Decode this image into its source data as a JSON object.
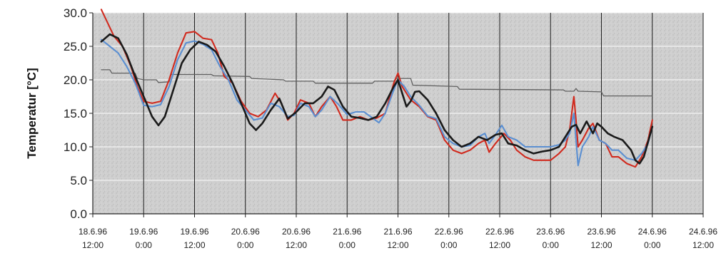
{
  "chart_data": {
    "type": "line",
    "title": "",
    "xlabel": "",
    "ylabel": "Temperatur [°C]",
    "ylim": [
      0,
      30
    ],
    "xlim_hours": [
      0,
      144
    ],
    "grid": true,
    "y_ticks": [
      "0.0",
      "5.0",
      "10.0",
      "15.0",
      "20.0",
      "25.0",
      "30.0"
    ],
    "x_ticks": [
      {
        "date": "18.6.96",
        "time": "12:00"
      },
      {
        "date": "19.6.96",
        "time": "0:00"
      },
      {
        "date": "19.6.96",
        "time": "12:00"
      },
      {
        "date": "20.6.96",
        "time": "0:00"
      },
      {
        "date": "20.6.96",
        "time": "12:00"
      },
      {
        "date": "21.6.96",
        "time": "0:00"
      },
      {
        "date": "21.6.96",
        "time": "12:00"
      },
      {
        "date": "22.6.96",
        "time": "0:00"
      },
      {
        "date": "22.6.96",
        "time": "12:00"
      },
      {
        "date": "23.6.96",
        "time": "0:00"
      },
      {
        "date": "23.6.96",
        "time": "12:00"
      },
      {
        "date": "24.6.96",
        "time": "0:00"
      },
      {
        "date": "24.6.96",
        "time": "12:00"
      }
    ],
    "series": [
      {
        "color": "#d02a1e",
        "points": [
          [
            2,
            30.5
          ],
          [
            5,
            26.5
          ],
          [
            7,
            25
          ],
          [
            9,
            22
          ],
          [
            10.5,
            19
          ],
          [
            12,
            16.8
          ],
          [
            14,
            16.5
          ],
          [
            16,
            16.8
          ],
          [
            18,
            20
          ],
          [
            20,
            24
          ],
          [
            22,
            27
          ],
          [
            24,
            27.2
          ],
          [
            26,
            26.2
          ],
          [
            28,
            26
          ],
          [
            29.5,
            24
          ],
          [
            31,
            20.5
          ],
          [
            33,
            19.5
          ],
          [
            35,
            16.8
          ],
          [
            37,
            15
          ],
          [
            39,
            14.5
          ],
          [
            41,
            15.5
          ],
          [
            43,
            18
          ],
          [
            44.5,
            16.5
          ],
          [
            46,
            14
          ],
          [
            47.5,
            15
          ],
          [
            49,
            17
          ],
          [
            51,
            16.5
          ],
          [
            52.5,
            14.5
          ],
          [
            54,
            16
          ],
          [
            56,
            17.5
          ],
          [
            57.5,
            16
          ],
          [
            59,
            14
          ],
          [
            61,
            14
          ],
          [
            63,
            14.5
          ],
          [
            65,
            14
          ],
          [
            67,
            14.3
          ],
          [
            69,
            15
          ],
          [
            71,
            19.5
          ],
          [
            72,
            21
          ],
          [
            73,
            19
          ],
          [
            75,
            17
          ],
          [
            77,
            16
          ],
          [
            79,
            14.5
          ],
          [
            81,
            14
          ],
          [
            83,
            11
          ],
          [
            85,
            9.5
          ],
          [
            87,
            9
          ],
          [
            89,
            9.5
          ],
          [
            91,
            10.5
          ],
          [
            92.5,
            11
          ],
          [
            93.5,
            9.2
          ],
          [
            95,
            10.5
          ],
          [
            97,
            12
          ],
          [
            98.5,
            11
          ],
          [
            100,
            9.5
          ],
          [
            102,
            8.5
          ],
          [
            104,
            8
          ],
          [
            106,
            8
          ],
          [
            108,
            8
          ],
          [
            110,
            9
          ],
          [
            111.5,
            10
          ],
          [
            112.5,
            12.5
          ],
          [
            113,
            15
          ],
          [
            113.5,
            17.5
          ],
          [
            114,
            14
          ],
          [
            114.5,
            10
          ],
          [
            115.5,
            11
          ],
          [
            117,
            12.8
          ],
          [
            118,
            13.5
          ],
          [
            119.5,
            11
          ],
          [
            121,
            10.5
          ],
          [
            122.5,
            8.5
          ],
          [
            124,
            8.5
          ],
          [
            126,
            7.5
          ],
          [
            128,
            7
          ],
          [
            129.5,
            8.5
          ],
          [
            131,
            11
          ],
          [
            132,
            14
          ]
        ]
      },
      {
        "color": "#5b8fd1",
        "points": [
          [
            2,
            26
          ],
          [
            4,
            25
          ],
          [
            6,
            24
          ],
          [
            8,
            22
          ],
          [
            10,
            19.5
          ],
          [
            12,
            16.2
          ],
          [
            14,
            16
          ],
          [
            16,
            16.3
          ],
          [
            18,
            19
          ],
          [
            20,
            23
          ],
          [
            22,
            25.5
          ],
          [
            24,
            25.8
          ],
          [
            26,
            25.3
          ],
          [
            28,
            24.5
          ],
          [
            30,
            22
          ],
          [
            32,
            20
          ],
          [
            34,
            17
          ],
          [
            36,
            15.5
          ],
          [
            38,
            14
          ],
          [
            40,
            14.3
          ],
          [
            42,
            16.5
          ],
          [
            44,
            16
          ],
          [
            46,
            14.5
          ],
          [
            47.5,
            14.7
          ],
          [
            49,
            16.5
          ],
          [
            51,
            16
          ],
          [
            52.5,
            14.5
          ],
          [
            54,
            15.5
          ],
          [
            56,
            17.5
          ],
          [
            58,
            16.3
          ],
          [
            60,
            14.8
          ],
          [
            62,
            15.2
          ],
          [
            64,
            15.2
          ],
          [
            66,
            14.3
          ],
          [
            67.5,
            13.6
          ],
          [
            69,
            15
          ],
          [
            71,
            18.5
          ],
          [
            72,
            20
          ],
          [
            73.5,
            19
          ],
          [
            75,
            17.5
          ],
          [
            77,
            16.2
          ],
          [
            79,
            14.6
          ],
          [
            81,
            14.2
          ],
          [
            83,
            11.5
          ],
          [
            85,
            10.5
          ],
          [
            87,
            10
          ],
          [
            89,
            10.2
          ],
          [
            91,
            11.5
          ],
          [
            92.5,
            12
          ],
          [
            93.5,
            10.5
          ],
          [
            95,
            11.8
          ],
          [
            96.5,
            13.2
          ],
          [
            98,
            11.5
          ],
          [
            100,
            11
          ],
          [
            102,
            10
          ],
          [
            104,
            10
          ],
          [
            106,
            10
          ],
          [
            108,
            10
          ],
          [
            110,
            10.3
          ],
          [
            111.5,
            11
          ],
          [
            112.5,
            12
          ],
          [
            113,
            13.5
          ],
          [
            113.5,
            15
          ],
          [
            114,
            11
          ],
          [
            114.5,
            7.2
          ],
          [
            115.5,
            10
          ],
          [
            117,
            11.5
          ],
          [
            118,
            13
          ],
          [
            119.5,
            11
          ],
          [
            121,
            10.5
          ],
          [
            122.5,
            9.5
          ],
          [
            124,
            9.5
          ],
          [
            126,
            8.3
          ],
          [
            128,
            8
          ],
          [
            129.5,
            9
          ],
          [
            131,
            10.5
          ],
          [
            132,
            13
          ]
        ]
      },
      {
        "color": "#1a1a1a",
        "points": [
          [
            2,
            25.7
          ],
          [
            4,
            26.8
          ],
          [
            6,
            26.2
          ],
          [
            8,
            23.8
          ],
          [
            10,
            20.5
          ],
          [
            12,
            17.5
          ],
          [
            14,
            14.5
          ],
          [
            15.5,
            13.2
          ],
          [
            17,
            14.5
          ],
          [
            19,
            18.5
          ],
          [
            21,
            22.5
          ],
          [
            23,
            24.5
          ],
          [
            25,
            25.7
          ],
          [
            27,
            25.2
          ],
          [
            29,
            24.2
          ],
          [
            31,
            22
          ],
          [
            33,
            19.5
          ],
          [
            35,
            16.5
          ],
          [
            37,
            13.5
          ],
          [
            38.5,
            12.5
          ],
          [
            40,
            13.5
          ],
          [
            42,
            15.5
          ],
          [
            44,
            17.2
          ],
          [
            46,
            14.2
          ],
          [
            48,
            15.2
          ],
          [
            50,
            16.5
          ],
          [
            52,
            16.5
          ],
          [
            54,
            17.5
          ],
          [
            55.5,
            19
          ],
          [
            57,
            18.5
          ],
          [
            59,
            16
          ],
          [
            61,
            14.5
          ],
          [
            63,
            14.3
          ],
          [
            65,
            14
          ],
          [
            67,
            14.5
          ],
          [
            69,
            16.5
          ],
          [
            71,
            19
          ],
          [
            72,
            20
          ],
          [
            73,
            18
          ],
          [
            74,
            16
          ],
          [
            75,
            16.8
          ],
          [
            76,
            18.2
          ],
          [
            77,
            18.3
          ],
          [
            79,
            17
          ],
          [
            81,
            15
          ],
          [
            83,
            12.5
          ],
          [
            85,
            11
          ],
          [
            87,
            10
          ],
          [
            89,
            10.5
          ],
          [
            91,
            11.5
          ],
          [
            93,
            11
          ],
          [
            95,
            11.8
          ],
          [
            96.5,
            12
          ],
          [
            98,
            10.5
          ],
          [
            100,
            10.2
          ],
          [
            102,
            9.5
          ],
          [
            104,
            9
          ],
          [
            106,
            9.3
          ],
          [
            108,
            9.5
          ],
          [
            110,
            10
          ],
          [
            112,
            12
          ],
          [
            113,
            13
          ],
          [
            114,
            13.3
          ],
          [
            115,
            12
          ],
          [
            116.5,
            13.8
          ],
          [
            118,
            12
          ],
          [
            119,
            13.5
          ],
          [
            120,
            13
          ],
          [
            121.5,
            12
          ],
          [
            123,
            11.5
          ],
          [
            125,
            11
          ],
          [
            127,
            9.5
          ],
          [
            128,
            8
          ],
          [
            129,
            7.5
          ],
          [
            130,
            8.5
          ],
          [
            132,
            13
          ]
        ]
      },
      {
        "color": "#606060",
        "points": [
          [
            2,
            21.5
          ],
          [
            4,
            21.5
          ],
          [
            4.5,
            21
          ],
          [
            10,
            21
          ],
          [
            10.5,
            20.2
          ],
          [
            12,
            20
          ],
          [
            15,
            20
          ],
          [
            15.5,
            19.6
          ],
          [
            18,
            19.7
          ],
          [
            18.5,
            20.8
          ],
          [
            28,
            20.8
          ],
          [
            28.5,
            20.6
          ],
          [
            37,
            20.5
          ],
          [
            37.5,
            20.2
          ],
          [
            45,
            20
          ],
          [
            45.5,
            19.8
          ],
          [
            52,
            19.8
          ],
          [
            52.5,
            19.5
          ],
          [
            66,
            19.5
          ],
          [
            66.5,
            19.8
          ],
          [
            71,
            19.8
          ],
          [
            71.5,
            20.2
          ],
          [
            75,
            20.2
          ],
          [
            75.5,
            19.2
          ],
          [
            86,
            19
          ],
          [
            86.5,
            18.6
          ],
          [
            111,
            18.5
          ],
          [
            111.5,
            18.3
          ],
          [
            113.5,
            18.3
          ],
          [
            114,
            18.7
          ],
          [
            114.5,
            18.3
          ],
          [
            120,
            18.2
          ],
          [
            120.5,
            17.6
          ],
          [
            132,
            17.6
          ]
        ]
      }
    ]
  }
}
